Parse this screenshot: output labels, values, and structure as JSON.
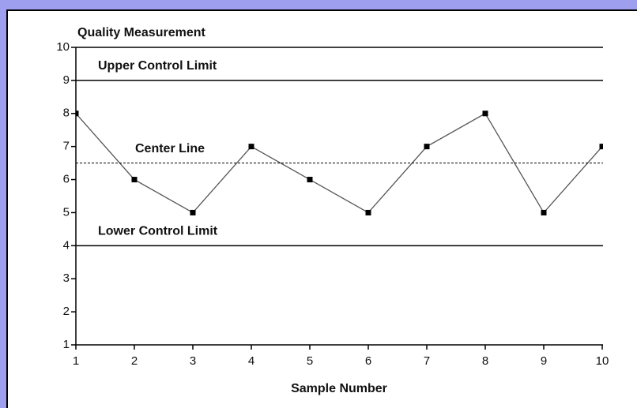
{
  "chart_data": {
    "type": "line",
    "ylabel": "Quality Measurement",
    "xlabel": "Sample Number",
    "x": [
      1,
      2,
      3,
      4,
      5,
      6,
      7,
      8,
      9,
      10
    ],
    "series": [
      {
        "name": "Quality Measurement",
        "color": "#555555",
        "values": [
          8,
          6,
          5,
          7,
          6,
          5,
          7,
          8,
          5,
          7
        ]
      }
    ],
    "xlim": [
      1,
      10
    ],
    "xticks": [
      1,
      2,
      3,
      4,
      5,
      6,
      7,
      8,
      9,
      10
    ],
    "ylim": [
      1,
      10
    ],
    "yticks": [
      1,
      2,
      3,
      4,
      5,
      6,
      7,
      8,
      9,
      10
    ],
    "reference_lines": [
      {
        "label": "Upper Control Limit",
        "value": 9,
        "style": "solid"
      },
      {
        "label": "Center Line",
        "value": 6.5,
        "style": "dashed"
      },
      {
        "label": "Lower Control Limit",
        "value": 4,
        "style": "solid"
      }
    ]
  }
}
